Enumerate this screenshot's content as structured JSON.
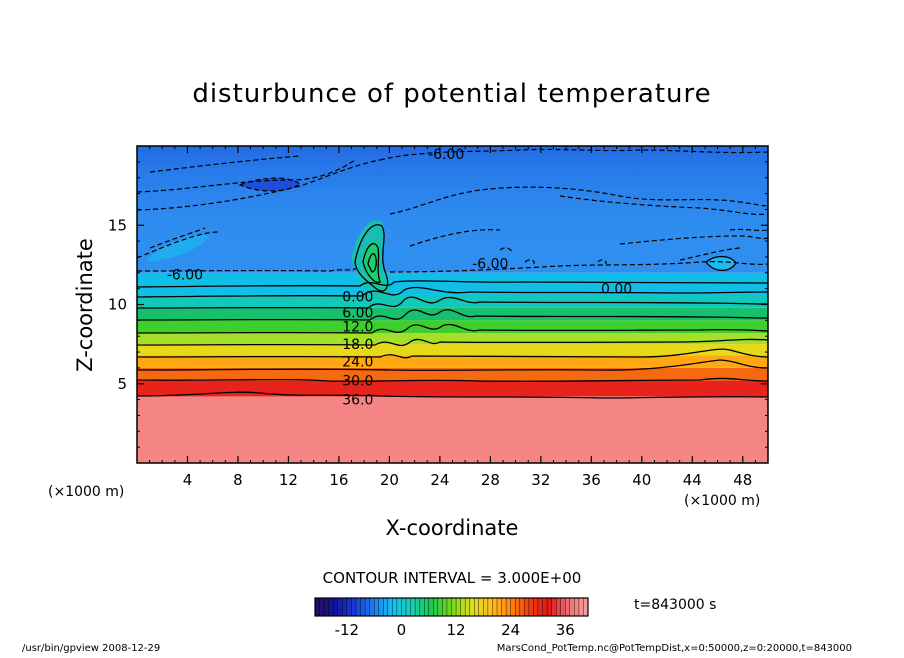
{
  "chart_data": {
    "type": "heatmap",
    "title": "disturbunce of potential temperature",
    "xlabel": "X-coordinate",
    "ylabel": "Z-coordinate",
    "x_unit": "(×1000 m)",
    "x_unit_right": "(×1000 m)",
    "xlim": [
      0,
      50
    ],
    "ylim": [
      0,
      20
    ],
    "x_ticks": [
      4,
      8,
      12,
      16,
      20,
      24,
      28,
      32,
      36,
      40,
      44,
      48
    ],
    "y_ticks": [
      5,
      10,
      15
    ],
    "contour_interval_label": "CONTOUR INTERVAL = 3.000E+00",
    "contour_interval": 3.0,
    "contour_levels": [
      {
        "label": "-6.00",
        "x": 3.8,
        "z": 11.9
      },
      {
        "label": "-6.00",
        "x": 28.0,
        "z": 12.6
      },
      {
        "label": "-6.00",
        "x": 24.5,
        "z": 19.5
      },
      {
        "label": "0.00",
        "x": 17.5,
        "z": 10.5
      },
      {
        "label": "0.00",
        "x": 38.0,
        "z": 11.0
      },
      {
        "label": "6.00",
        "x": 17.5,
        "z": 9.5
      },
      {
        "label": "12.0",
        "x": 17.5,
        "z": 8.6
      },
      {
        "label": "18.0",
        "x": 17.5,
        "z": 7.5
      },
      {
        "label": "24.0",
        "x": 17.5,
        "z": 6.4
      },
      {
        "label": "30.0",
        "x": 17.5,
        "z": 5.2
      },
      {
        "label": "36.0",
        "x": 17.5,
        "z": 4.0
      }
    ],
    "bands": [
      {
        "z0": 0,
        "z1": 4.2,
        "value": 38,
        "color": "#f58585"
      },
      {
        "z0": 4.2,
        "z1": 5.2,
        "value": 33,
        "color": "#e8231c"
      },
      {
        "z0": 5.2,
        "z1": 6.0,
        "value": 28,
        "color": "#f56a10"
      },
      {
        "z0": 6.0,
        "z1": 6.8,
        "value": 24,
        "color": "#ffa813"
      },
      {
        "z0": 6.8,
        "z1": 7.5,
        "value": 21,
        "color": "#e8d81a"
      },
      {
        "z0": 7.5,
        "z1": 8.2,
        "value": 17,
        "color": "#a4e02a"
      },
      {
        "z0": 8.2,
        "z1": 9.0,
        "value": 12,
        "color": "#3fcf2c"
      },
      {
        "z0": 9.0,
        "z1": 9.8,
        "value": 7,
        "color": "#18c06e"
      },
      {
        "z0": 9.8,
        "z1": 10.6,
        "value": 3,
        "color": "#12c8b8"
      },
      {
        "z0": 10.6,
        "z1": 12.0,
        "value": -2,
        "color": "#10bfe8"
      },
      {
        "z0": 12.0,
        "z1": 20.0,
        "value": -7,
        "color": "#2f8ff0"
      }
    ],
    "colorbar": {
      "ticks": [
        -12,
        0,
        12,
        24,
        36
      ],
      "range": [
        -19,
        41
      ],
      "colors": [
        "#2a0a5a",
        "#141499",
        "#1a3ad6",
        "#1a7ef0",
        "#18c0f0",
        "#17d0b0",
        "#1ac850",
        "#7ad818",
        "#d8e020",
        "#ffc020",
        "#ff8a10",
        "#f03a10",
        "#e01818",
        "#f07070",
        "#f5a0a0"
      ]
    },
    "time_label": "t=843000 s"
  },
  "footer": {
    "left": "/usr/bin/gpview   2008-12-29",
    "right": "MarsCond_PotTemp.nc@PotTempDist,x=0:50000,z=0:20000,t=843000"
  }
}
